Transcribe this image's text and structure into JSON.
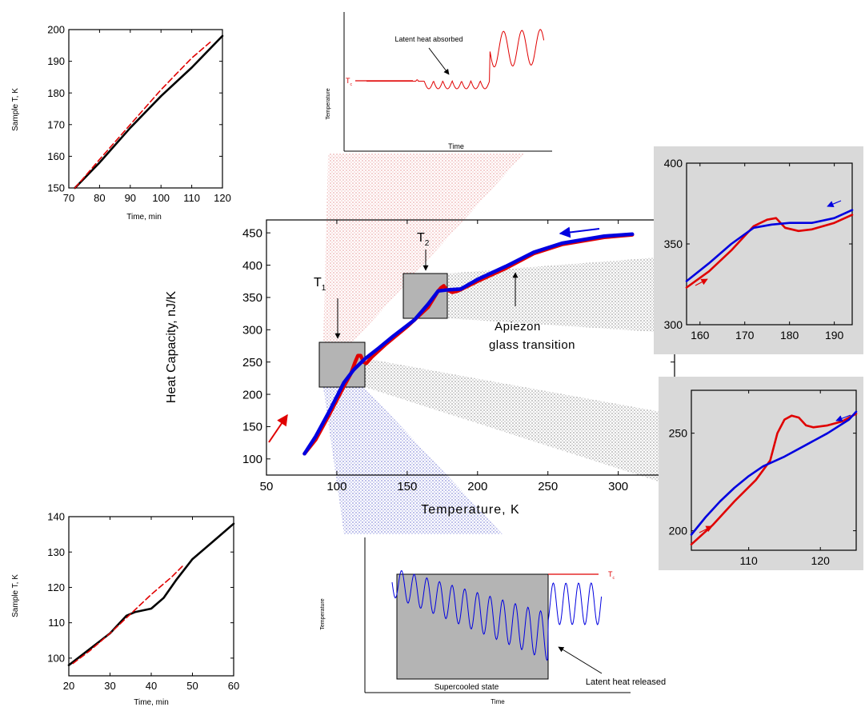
{
  "chart_data": [
    {
      "id": "main",
      "type": "line",
      "xlabel": "Temperature, K",
      "ylabel": "Heat Capacity, nJ/K",
      "xlim": [
        50,
        340
      ],
      "ylim": [
        75,
        470
      ],
      "xticks": [
        50,
        100,
        150,
        200,
        250,
        300
      ],
      "yticks": [
        100,
        150,
        200,
        250,
        300,
        350,
        400,
        450
      ],
      "series": [
        {
          "color": "#e00000",
          "points": [
            [
              77,
              108
            ],
            [
              85,
              130
            ],
            [
              95,
              170
            ],
            [
              105,
              212
            ],
            [
              110,
              232
            ],
            [
              113,
              250
            ],
            [
              115,
              260
            ],
            [
              117,
              260
            ],
            [
              119,
              250
            ],
            [
              121,
              248
            ],
            [
              125,
              258
            ],
            [
              135,
              278
            ],
            [
              150,
              305
            ],
            [
              165,
              335
            ],
            [
              172,
              360
            ],
            [
              174,
              365
            ],
            [
              176,
              368
            ],
            [
              178,
              362
            ],
            [
              182,
              358
            ],
            [
              186,
              360
            ],
            [
              200,
              375
            ],
            [
              220,
              395
            ],
            [
              240,
              418
            ],
            [
              260,
              432
            ],
            [
              290,
              443
            ],
            [
              310,
              447
            ]
          ]
        },
        {
          "color": "#0000e0",
          "points": [
            [
              77,
              108
            ],
            [
              85,
              135
            ],
            [
              95,
              175
            ],
            [
              105,
              218
            ],
            [
              112,
              238
            ],
            [
              120,
              255
            ],
            [
              130,
              272
            ],
            [
              140,
              290
            ],
            [
              155,
              315
            ],
            [
              165,
              340
            ],
            [
              172,
              360
            ],
            [
              180,
              362
            ],
            [
              188,
              363
            ],
            [
              200,
              378
            ],
            [
              220,
              398
            ],
            [
              240,
              420
            ],
            [
              260,
              434
            ],
            [
              290,
              445
            ],
            [
              310,
              448
            ]
          ]
        }
      ],
      "annotations": {
        "t1": "T",
        "t1_sub": "1",
        "t2": "T",
        "t2_sub": "2",
        "apiezon_line1": "Apiezon",
        "apiezon_line2": "glass transition"
      }
    },
    {
      "id": "top_left",
      "type": "line",
      "xlabel": "Time, min",
      "ylabel": "Sample T, K",
      "xlim": [
        70,
        120
      ],
      "ylim": [
        150,
        200
      ],
      "xticks": [
        70,
        80,
        90,
        100,
        110,
        120
      ],
      "yticks": [
        150,
        160,
        170,
        180,
        190,
        200
      ],
      "series": [
        {
          "color": "#000000",
          "points": [
            [
              72,
              150
            ],
            [
              80,
              158
            ],
            [
              90,
              169
            ],
            [
              100,
              179
            ],
            [
              110,
              188
            ],
            [
              120,
              198
            ]
          ]
        },
        {
          "color": "#e00000",
          "dashed": true,
          "points": [
            [
              72,
              150
            ],
            [
              80,
              159
            ],
            [
              90,
              170
            ],
            [
              100,
              181
            ],
            [
              110,
              191
            ],
            [
              116,
              196
            ]
          ]
        }
      ]
    },
    {
      "id": "bottom_left",
      "type": "line",
      "xlabel": "Time, min",
      "ylabel": "Sample T, K",
      "xlim": [
        20,
        60
      ],
      "ylim": [
        95,
        140
      ],
      "xticks": [
        20,
        30,
        40,
        50,
        60
      ],
      "yticks": [
        100,
        110,
        120,
        130,
        140
      ],
      "series": [
        {
          "color": "#000000",
          "points": [
            [
              20,
              98
            ],
            [
              25,
              102.5
            ],
            [
              30,
              107
            ],
            [
              34,
              112
            ],
            [
              36,
              113
            ],
            [
              40,
              114
            ],
            [
              43,
              117
            ],
            [
              46,
              122
            ],
            [
              50,
              128
            ],
            [
              55,
              133
            ],
            [
              60,
              138
            ]
          ]
        },
        {
          "color": "#e00000",
          "dashed": true,
          "points": [
            [
              21,
              98.5
            ],
            [
              25,
              102
            ],
            [
              30,
              107
            ],
            [
              35,
              112.5
            ],
            [
              40,
              118
            ],
            [
              45,
              123
            ],
            [
              48,
              126.5
            ]
          ]
        }
      ]
    },
    {
      "id": "right_top",
      "type": "line",
      "xlim": [
        157,
        194
      ],
      "ylim": [
        300,
        400
      ],
      "xticks": [
        160,
        170,
        180,
        190
      ],
      "yticks": [
        300,
        350,
        400
      ],
      "series": [
        {
          "color": "#e00000",
          "points": [
            [
              157,
              323
            ],
            [
              162,
              333
            ],
            [
              167,
              346
            ],
            [
              172,
              361
            ],
            [
              175,
              365
            ],
            [
              177,
              366
            ],
            [
              179,
              360
            ],
            [
              182,
              358
            ],
            [
              185,
              359
            ],
            [
              190,
              363
            ],
            [
              194,
              368
            ]
          ]
        },
        {
          "color": "#0000e0",
          "points": [
            [
              157,
              327
            ],
            [
              162,
              338
            ],
            [
              167,
              350
            ],
            [
              172,
              360
            ],
            [
              176,
              362
            ],
            [
              180,
              363
            ],
            [
              185,
              363
            ],
            [
              190,
              366
            ],
            [
              194,
              371
            ]
          ]
        }
      ]
    },
    {
      "id": "right_bottom",
      "type": "line",
      "xlim": [
        102,
        125
      ],
      "ylim": [
        190,
        272
      ],
      "xticks": [
        110,
        120
      ],
      "yticks": [
        200,
        250
      ],
      "series": [
        {
          "color": "#e00000",
          "points": [
            [
              102,
              193
            ],
            [
              105,
              203
            ],
            [
              108,
              215
            ],
            [
              111,
              226
            ],
            [
              113,
              236
            ],
            [
              114,
              250
            ],
            [
              115,
              257
            ],
            [
              116,
              259
            ],
            [
              117,
              258
            ],
            [
              118,
              254
            ],
            [
              119,
              253
            ],
            [
              121,
              254
            ],
            [
              123,
              256
            ],
            [
              125,
              260
            ]
          ]
        },
        {
          "color": "#0000e0",
          "points": [
            [
              102,
              198
            ],
            [
              104,
              207
            ],
            [
              106,
              215
            ],
            [
              108,
              222
            ],
            [
              110,
              228
            ],
            [
              112,
              233
            ],
            [
              115,
              238
            ],
            [
              118,
              244
            ],
            [
              121,
              250
            ],
            [
              124,
              257
            ],
            [
              125,
              261
            ]
          ]
        }
      ]
    },
    {
      "id": "top_middle",
      "type": "line",
      "xlabel": "Time",
      "ylabel": "Temperature",
      "annotations": {
        "tc": "T",
        "tc_sub": "c",
        "note": "Latent heat absorbed"
      }
    },
    {
      "id": "bottom_middle",
      "type": "line",
      "xlabel": "Time",
      "ylabel": "Temperature",
      "annotations": {
        "tc": "T",
        "tc_sub": "c",
        "box_label": "Supercooled state",
        "note": "Latent heat released"
      }
    }
  ]
}
